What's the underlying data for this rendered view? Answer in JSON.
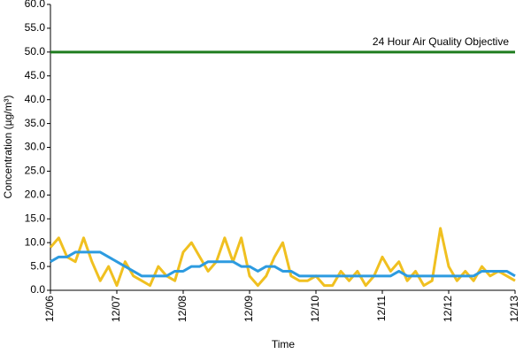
{
  "chart_data": {
    "type": "line",
    "ylabel": "Concentration (µg/m³)",
    "xlabel": "Time",
    "x": [
      0,
      0.125,
      0.25,
      0.375,
      0.5,
      0.625,
      0.75,
      0.875,
      1,
      1.125,
      1.25,
      1.375,
      1.5,
      1.625,
      1.75,
      1.875,
      2,
      2.125,
      2.25,
      2.375,
      2.5,
      2.625,
      2.75,
      2.875,
      3,
      3.125,
      3.25,
      3.375,
      3.5,
      3.625,
      3.75,
      3.875,
      4,
      4.125,
      4.25,
      4.375,
      4.5,
      4.625,
      4.75,
      4.875,
      5,
      5.125,
      5.25,
      5.375,
      5.5,
      5.625,
      5.75,
      5.875,
      6,
      6.125,
      6.25,
      6.375,
      6.5,
      6.625,
      6.75,
      6.875,
      7
    ],
    "series": [
      {
        "color": "#f0c020",
        "values": [
          9,
          11,
          7,
          6,
          11,
          6,
          2,
          5,
          1,
          6,
          3,
          2,
          1,
          5,
          3,
          2,
          8,
          10,
          7,
          4,
          6,
          11,
          6,
          11,
          3,
          1,
          3,
          7,
          10,
          3,
          2,
          2,
          3,
          1,
          1,
          4,
          2,
          4,
          1,
          3,
          7,
          4,
          6,
          2,
          4,
          1,
          2,
          13,
          5,
          2,
          4,
          2,
          5,
          3,
          4,
          3,
          2
        ]
      },
      {
        "color": "#2d9be0",
        "values": [
          6,
          7,
          7,
          8,
          8,
          8,
          8,
          7,
          6,
          5,
          4,
          3,
          3,
          3,
          3,
          4,
          4,
          5,
          5,
          6,
          6,
          6,
          6,
          5,
          5,
          4,
          5,
          5,
          4,
          4,
          3,
          3,
          3,
          3,
          3,
          3,
          3,
          3,
          3,
          3,
          3,
          3,
          4,
          3,
          3,
          3,
          3,
          3,
          3,
          3,
          3,
          3,
          4,
          4,
          4,
          4,
          3
        ]
      }
    ],
    "objective": {
      "value": 50,
      "label": "24 Hour Air Quality Objective",
      "color": "#1f7d1f"
    },
    "xlim": [
      0,
      7
    ],
    "xticks": [
      {
        "value": 0,
        "label": "12/06"
      },
      {
        "value": 1,
        "label": "12/07"
      },
      {
        "value": 2,
        "label": "12/08"
      },
      {
        "value": 3,
        "label": "12/09"
      },
      {
        "value": 4,
        "label": "12/10"
      },
      {
        "value": 5,
        "label": "12/11"
      },
      {
        "value": 6,
        "label": "12/12"
      },
      {
        "value": 7,
        "label": "12/13"
      }
    ],
    "ylim": [
      0,
      60
    ],
    "yticks": [
      {
        "value": 0,
        "label": "0.0"
      },
      {
        "value": 5,
        "label": "5.0"
      },
      {
        "value": 10,
        "label": "10.0"
      },
      {
        "value": 15,
        "label": "15.0"
      },
      {
        "value": 20,
        "label": "20.0"
      },
      {
        "value": 25,
        "label": "25.0"
      },
      {
        "value": 30,
        "label": "30.0"
      },
      {
        "value": 35,
        "label": "35.0"
      },
      {
        "value": 40,
        "label": "40.0"
      },
      {
        "value": 45,
        "label": "45.0"
      },
      {
        "value": 50,
        "label": "50.0"
      },
      {
        "value": 55,
        "label": "55.0"
      },
      {
        "value": 60,
        "label": "60.0"
      }
    ],
    "grid": false
  }
}
